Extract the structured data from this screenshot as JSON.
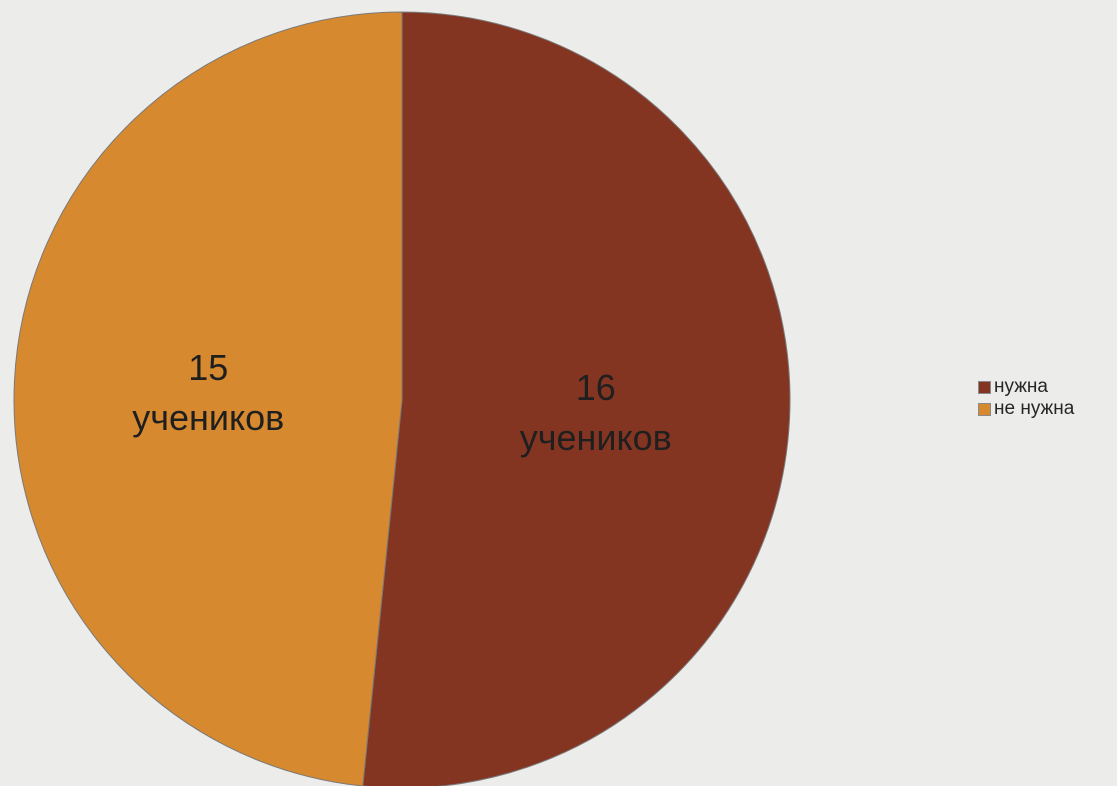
{
  "chart_data": {
    "type": "pie",
    "slices": [
      {
        "label": "нужна",
        "value": 16,
        "data_label_number": "16",
        "data_label_unit": "учеников",
        "color": "#843522"
      },
      {
        "label": "не нужна",
        "value": 15,
        "data_label_number": "15",
        "data_label_unit": "учеников",
        "color": "#d6892e"
      }
    ],
    "legend_position": "right"
  }
}
